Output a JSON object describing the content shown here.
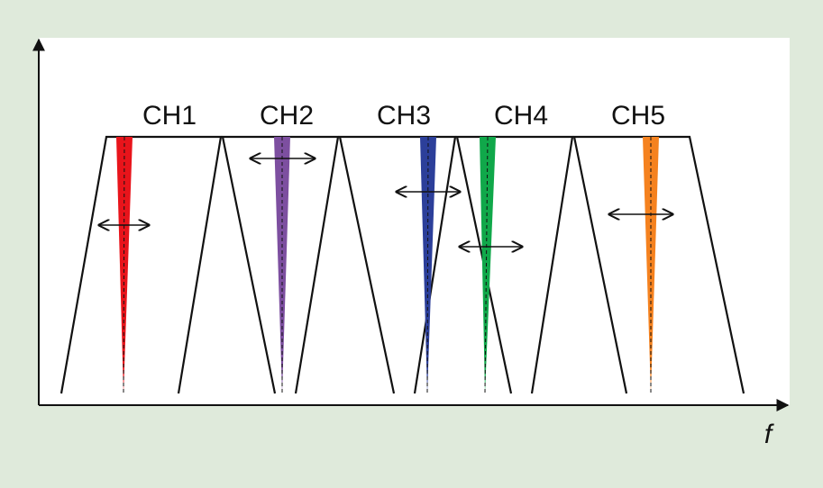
{
  "channels": [
    {
      "label": "CH1"
    },
    {
      "label": "CH2"
    },
    {
      "label": "CH3"
    },
    {
      "label": "CH4"
    },
    {
      "label": "CH5"
    }
  ],
  "axis": {
    "x_label": "f"
  }
}
